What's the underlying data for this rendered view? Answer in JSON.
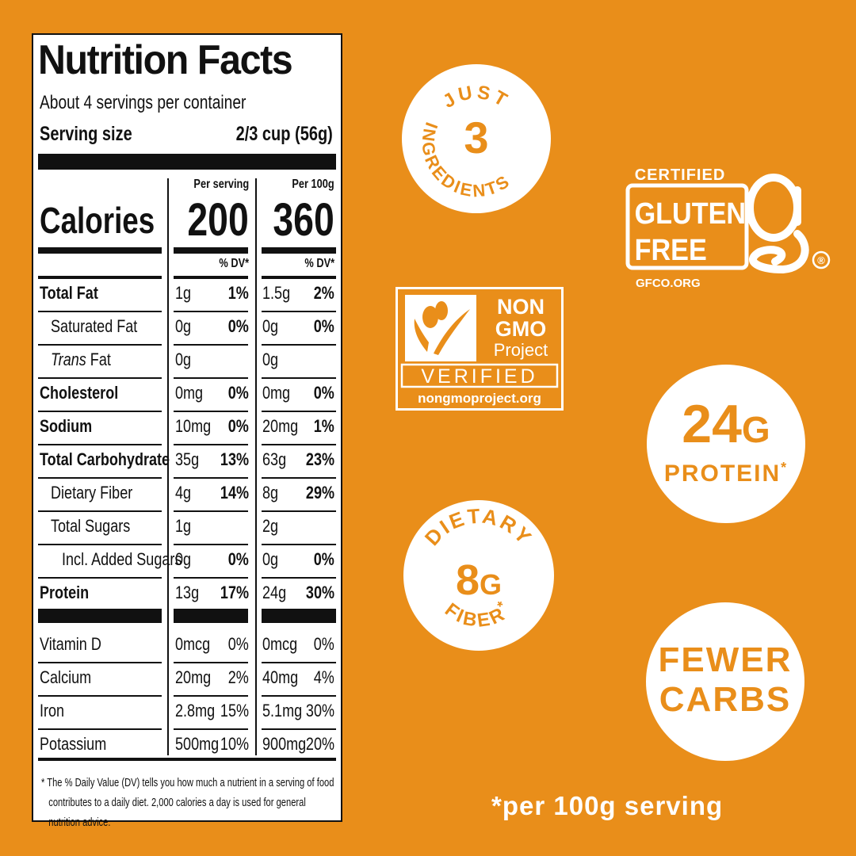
{
  "label": {
    "title": "Nutrition Facts",
    "servings": "About 4 servings per container",
    "serving_size_label": "Serving size",
    "serving_size_value": "2/3 cup (56g)",
    "per_serving": "Per serving",
    "per_100g": "Per 100g",
    "calories_label": "Calories",
    "calories_serving": "200",
    "calories_100g": "360",
    "dv_header": "% DV*",
    "rows": [
      {
        "name": "Total Fat",
        "a": "1g",
        "ap": "1%",
        "b": "1.5g",
        "bp": "2%"
      },
      {
        "name": "Saturated Fat",
        "a": "0g",
        "ap": "0%",
        "b": "0g",
        "bp": "0%"
      },
      {
        "name": "Fat",
        "prefix": "Trans",
        "a": "0g",
        "ap": "",
        "b": "0g",
        "bp": ""
      },
      {
        "name": "Cholesterol",
        "a": "0mg",
        "ap": "0%",
        "b": "0mg",
        "bp": "0%"
      },
      {
        "name": "Sodium",
        "a": "10mg",
        "ap": "0%",
        "b": "20mg",
        "bp": "1%"
      },
      {
        "name": "Total Carbohydrate",
        "a": "35g",
        "ap": "13%",
        "b": "63g",
        "bp": "23%"
      },
      {
        "name": "Dietary Fiber",
        "a": "4g",
        "ap": "14%",
        "b": "8g",
        "bp": "29%"
      },
      {
        "name": "Total Sugars",
        "a": "1g",
        "ap": "",
        "b": "2g",
        "bp": ""
      },
      {
        "name": "Incl. Added Sugars",
        "a": "0g",
        "ap": "0%",
        "b": "0g",
        "bp": "0%"
      },
      {
        "name": "Protein",
        "a": "13g",
        "ap": "17%",
        "b": "24g",
        "bp": "30%"
      }
    ],
    "vitamins": [
      {
        "name": "Vitamin D",
        "a": "0mcg",
        "ap": "0%",
        "b": "0mcg",
        "bp": "0%"
      },
      {
        "name": "Calcium",
        "a": "20mg",
        "ap": "2%",
        "b": "40mg",
        "bp": "4%"
      },
      {
        "name": "Iron",
        "a": "2.8mg",
        "ap": "15%",
        "b": "5.1mg",
        "bp": "30%"
      },
      {
        "name": "Potassium",
        "a": "500mg",
        "ap": "10%",
        "b": "900mg",
        "bp": "20%"
      }
    ],
    "footnote_line1": "* The % Daily Value (DV) tells you how much a nutrient in a serving of food",
    "footnote_line2": "contributes to a daily diet. 2,000 calories a day is used for general nutrition advice."
  },
  "badges": {
    "ingredients_top": "JUST",
    "ingredients_num": "3",
    "ingredients_bottom": "INGREDIENTS",
    "gf_certified": "CERTIFIED",
    "gf_gluten": "GLUTEN",
    "gf_free": "FREE",
    "gf_reg": "®",
    "gf_url": "GFCO.ORG",
    "ngmo_non": "NON",
    "ngmo_gmo": "GMO",
    "ngmo_project": "Project",
    "ngmo_verified": "VERIFIED",
    "ngmo_url": "nongmoproject.org",
    "protein_num": "24",
    "protein_unit": "G",
    "protein_label": "PROTEIN",
    "protein_star": "*",
    "fiber_top": "DIETARY",
    "fiber_num": "8",
    "fiber_unit": "G",
    "fiber_bottom": "FIBER",
    "fiber_star": "*",
    "carbs_line1": "FEWER",
    "carbs_line2": "CARBS"
  },
  "footer_note": "*per 100g serving",
  "colors": {
    "background": "#E98E1A",
    "badge": "#FFFFFF",
    "label_ink": "#111111"
  }
}
